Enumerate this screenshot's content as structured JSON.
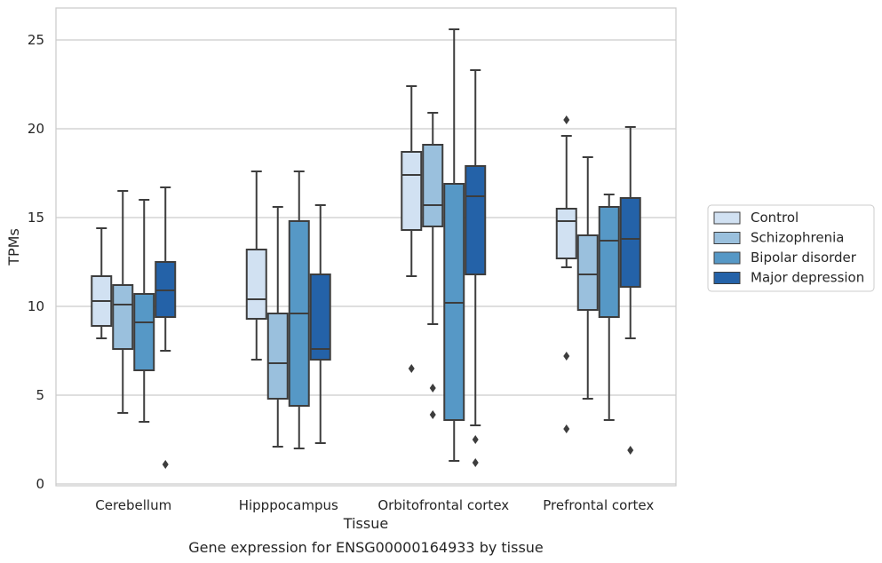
{
  "chart_data": {
    "type": "box",
    "title": "",
    "caption": "Gene expression for ENSG00000164933 by tissue",
    "xlabel": "Tissue",
    "ylabel": "TPMs",
    "ylim": [
      -0.1,
      26.8
    ],
    "yticks": [
      0,
      5,
      10,
      15,
      20,
      25
    ],
    "grid": "horizontal",
    "legend_position": "right",
    "categories": [
      "Cerebellum",
      "Hipppocampus",
      "Orbitofrontal cortex",
      "Prefrontal cortex"
    ],
    "series": [
      {
        "name": "Control",
        "color": "#d1e1f2",
        "boxes": [
          {
            "whisker_low": 8.2,
            "q1": 8.9,
            "median": 10.3,
            "q3": 11.7,
            "whisker_high": 14.4,
            "outliers": []
          },
          {
            "whisker_low": 7.0,
            "q1": 9.3,
            "median": 10.4,
            "q3": 13.2,
            "whisker_high": 17.6,
            "outliers": []
          },
          {
            "whisker_low": 11.7,
            "q1": 14.3,
            "median": 17.4,
            "q3": 18.7,
            "whisker_high": 22.4,
            "outliers": [
              6.5
            ]
          },
          {
            "whisker_low": 12.2,
            "q1": 12.7,
            "median": 14.8,
            "q3": 15.5,
            "whisker_high": 19.6,
            "outliers": [
              20.5,
              7.2,
              3.1
            ]
          }
        ]
      },
      {
        "name": "Schizophrenia",
        "color": "#9ac0dd",
        "boxes": [
          {
            "whisker_low": 4.0,
            "q1": 7.6,
            "median": 10.1,
            "q3": 11.2,
            "whisker_high": 16.5,
            "outliers": []
          },
          {
            "whisker_low": 2.1,
            "q1": 4.8,
            "median": 6.8,
            "q3": 9.6,
            "whisker_high": 15.6,
            "outliers": []
          },
          {
            "whisker_low": 9.0,
            "q1": 14.5,
            "median": 15.7,
            "q3": 19.1,
            "whisker_high": 20.9,
            "outliers": [
              5.4,
              3.9
            ]
          },
          {
            "whisker_low": 4.8,
            "q1": 9.8,
            "median": 11.8,
            "q3": 14.0,
            "whisker_high": 18.4,
            "outliers": []
          }
        ]
      },
      {
        "name": "Bipolar disorder",
        "color": "#5698c6",
        "boxes": [
          {
            "whisker_low": 3.5,
            "q1": 6.4,
            "median": 9.1,
            "q3": 10.7,
            "whisker_high": 16.0,
            "outliers": []
          },
          {
            "whisker_low": 2.0,
            "q1": 4.4,
            "median": 9.6,
            "q3": 14.8,
            "whisker_high": 17.6,
            "outliers": []
          },
          {
            "whisker_low": 1.3,
            "q1": 3.6,
            "median": 10.2,
            "q3": 16.9,
            "whisker_high": 25.6,
            "outliers": []
          },
          {
            "whisker_low": 3.6,
            "q1": 9.4,
            "median": 13.7,
            "q3": 15.6,
            "whisker_high": 16.3,
            "outliers": []
          }
        ]
      },
      {
        "name": "Major depression",
        "color": "#2462a8",
        "boxes": [
          {
            "whisker_low": 7.5,
            "q1": 9.4,
            "median": 10.9,
            "q3": 12.5,
            "whisker_high": 16.7,
            "outliers": [
              1.1
            ]
          },
          {
            "whisker_low": 2.3,
            "q1": 7.0,
            "median": 7.6,
            "q3": 11.8,
            "whisker_high": 15.7,
            "outliers": []
          },
          {
            "whisker_low": 3.3,
            "q1": 11.8,
            "median": 16.2,
            "q3": 17.9,
            "whisker_high": 23.3,
            "outliers": [
              2.5,
              1.2
            ]
          },
          {
            "whisker_low": 8.2,
            "q1": 11.1,
            "median": 13.8,
            "q3": 16.1,
            "whisker_high": 20.1,
            "outliers": [
              1.9
            ]
          }
        ]
      }
    ]
  }
}
